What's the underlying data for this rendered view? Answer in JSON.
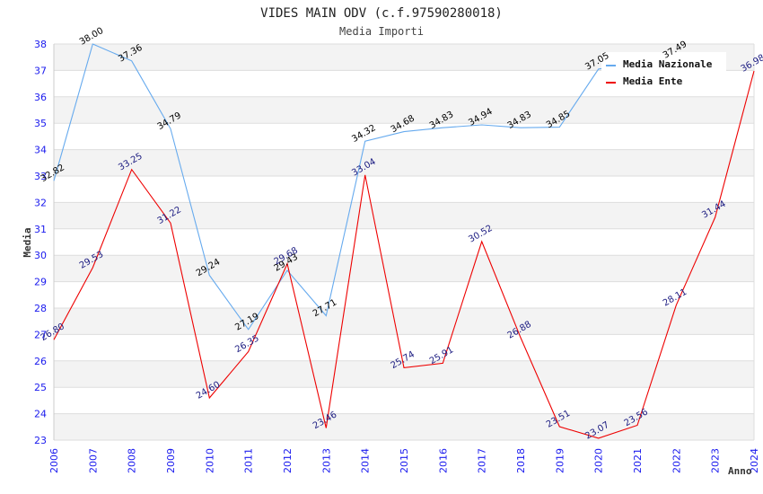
{
  "chart_data": {
    "type": "line",
    "title": "VIDES MAIN ODV (c.f.97590280018)",
    "subtitle": "Media Importi",
    "xlabel": "Anno",
    "ylabel": "Media",
    "ylim": [
      23,
      38
    ],
    "yticks": [
      "23",
      "24",
      "25",
      "26",
      "27",
      "28",
      "29",
      "30",
      "31",
      "32",
      "33",
      "34",
      "35",
      "36",
      "37",
      "38"
    ],
    "x": [
      2006,
      2007,
      2008,
      2009,
      2010,
      2011,
      2012,
      2013,
      2014,
      2015,
      2016,
      2017,
      2018,
      2019,
      2020,
      2021,
      2022,
      2023,
      2024
    ],
    "xticks": [
      "2006",
      "2007",
      "2008",
      "2009",
      "2010",
      "2011",
      "2012",
      "2013",
      "2014",
      "2015",
      "2016",
      "2017",
      "2018",
      "2019",
      "2020",
      "2021",
      "2022",
      "2023",
      "2024"
    ],
    "grid": true,
    "legend_position": "top-right",
    "series": [
      {
        "name": "Media Nazionale",
        "color": "#66aaee",
        "label_color": "#000000",
        "values": [
          32.82,
          38.0,
          37.36,
          34.79,
          29.24,
          27.19,
          29.43,
          27.71,
          34.32,
          34.68,
          34.83,
          34.94,
          34.83,
          34.85,
          37.05,
          null,
          37.49,
          null,
          null
        ],
        "labels": [
          "32.82",
          "38.00",
          "37.36",
          "34.79",
          "29.24",
          "27.19",
          "29.43",
          "27.71",
          "34.32",
          "34.68",
          "34.83",
          "34.94",
          "34.83",
          "34.85",
          "37.05",
          null,
          "37.49",
          null,
          null
        ]
      },
      {
        "name": "Media Ente",
        "color": "#ee0000",
        "label_color": "#1a1a80",
        "values": [
          26.8,
          29.53,
          33.25,
          31.22,
          24.6,
          26.35,
          29.68,
          23.46,
          33.04,
          25.74,
          25.91,
          30.52,
          26.88,
          23.51,
          23.07,
          23.56,
          28.11,
          31.44,
          36.98
        ],
        "labels": [
          "26.80",
          "29.53",
          "33.25",
          "31.22",
          "24.60",
          "26.35",
          "29.68",
          "23.46",
          "33.04",
          "25.74",
          "25.91",
          "30.52",
          "26.88",
          "23.51",
          "23.07",
          "23.56",
          "28.11",
          "31.44",
          "36.98"
        ]
      }
    ]
  }
}
